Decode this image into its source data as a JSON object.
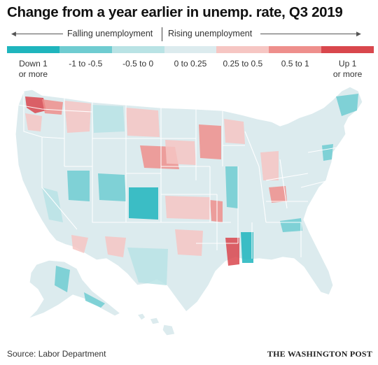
{
  "title": "Change from a year earlier in unemp. rate, Q3 2019",
  "direction": {
    "falling": "Falling unemployment",
    "rising": "Rising unemployment"
  },
  "legend": [
    {
      "label": "Down 1\nor more",
      "color": "#1fb5bd"
    },
    {
      "label": "-1 to -0.5",
      "color": "#6fccd1"
    },
    {
      "label": "-0.5 to 0",
      "color": "#b9e3e5"
    },
    {
      "label": "0 to 0.25",
      "color": "#dcebee"
    },
    {
      "label": "0.25 to 0.5",
      "color": "#f6c6c3"
    },
    {
      "label": "0.5 to 1",
      "color": "#ee8f8c"
    },
    {
      "label": "Up 1\nor more",
      "color": "#d9474d"
    }
  ],
  "footer": {
    "source": "Source: Labor Department",
    "credit": "THE WASHINGTON POST"
  },
  "colors": {
    "base": "#dcebee",
    "border": "#ffffff"
  }
}
